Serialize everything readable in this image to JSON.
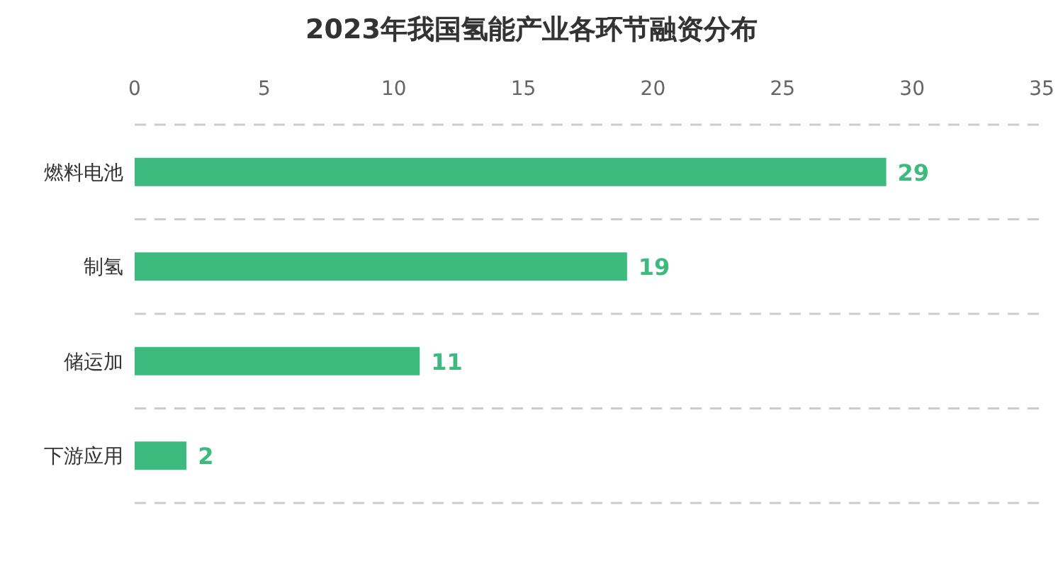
{
  "chart_data": {
    "type": "bar",
    "orientation": "horizontal",
    "title": "2023年我国氢能产业各环节融资分布",
    "categories": [
      "燃料电池",
      "制氢",
      "储运加",
      "下游应用"
    ],
    "values": [
      29,
      19,
      11,
      2
    ],
    "color": "#3dba7e",
    "xlim": [
      0,
      35
    ],
    "xticks": [
      0,
      5,
      10,
      15,
      20,
      25,
      30,
      35
    ],
    "grid": "y",
    "data_labels": true
  }
}
